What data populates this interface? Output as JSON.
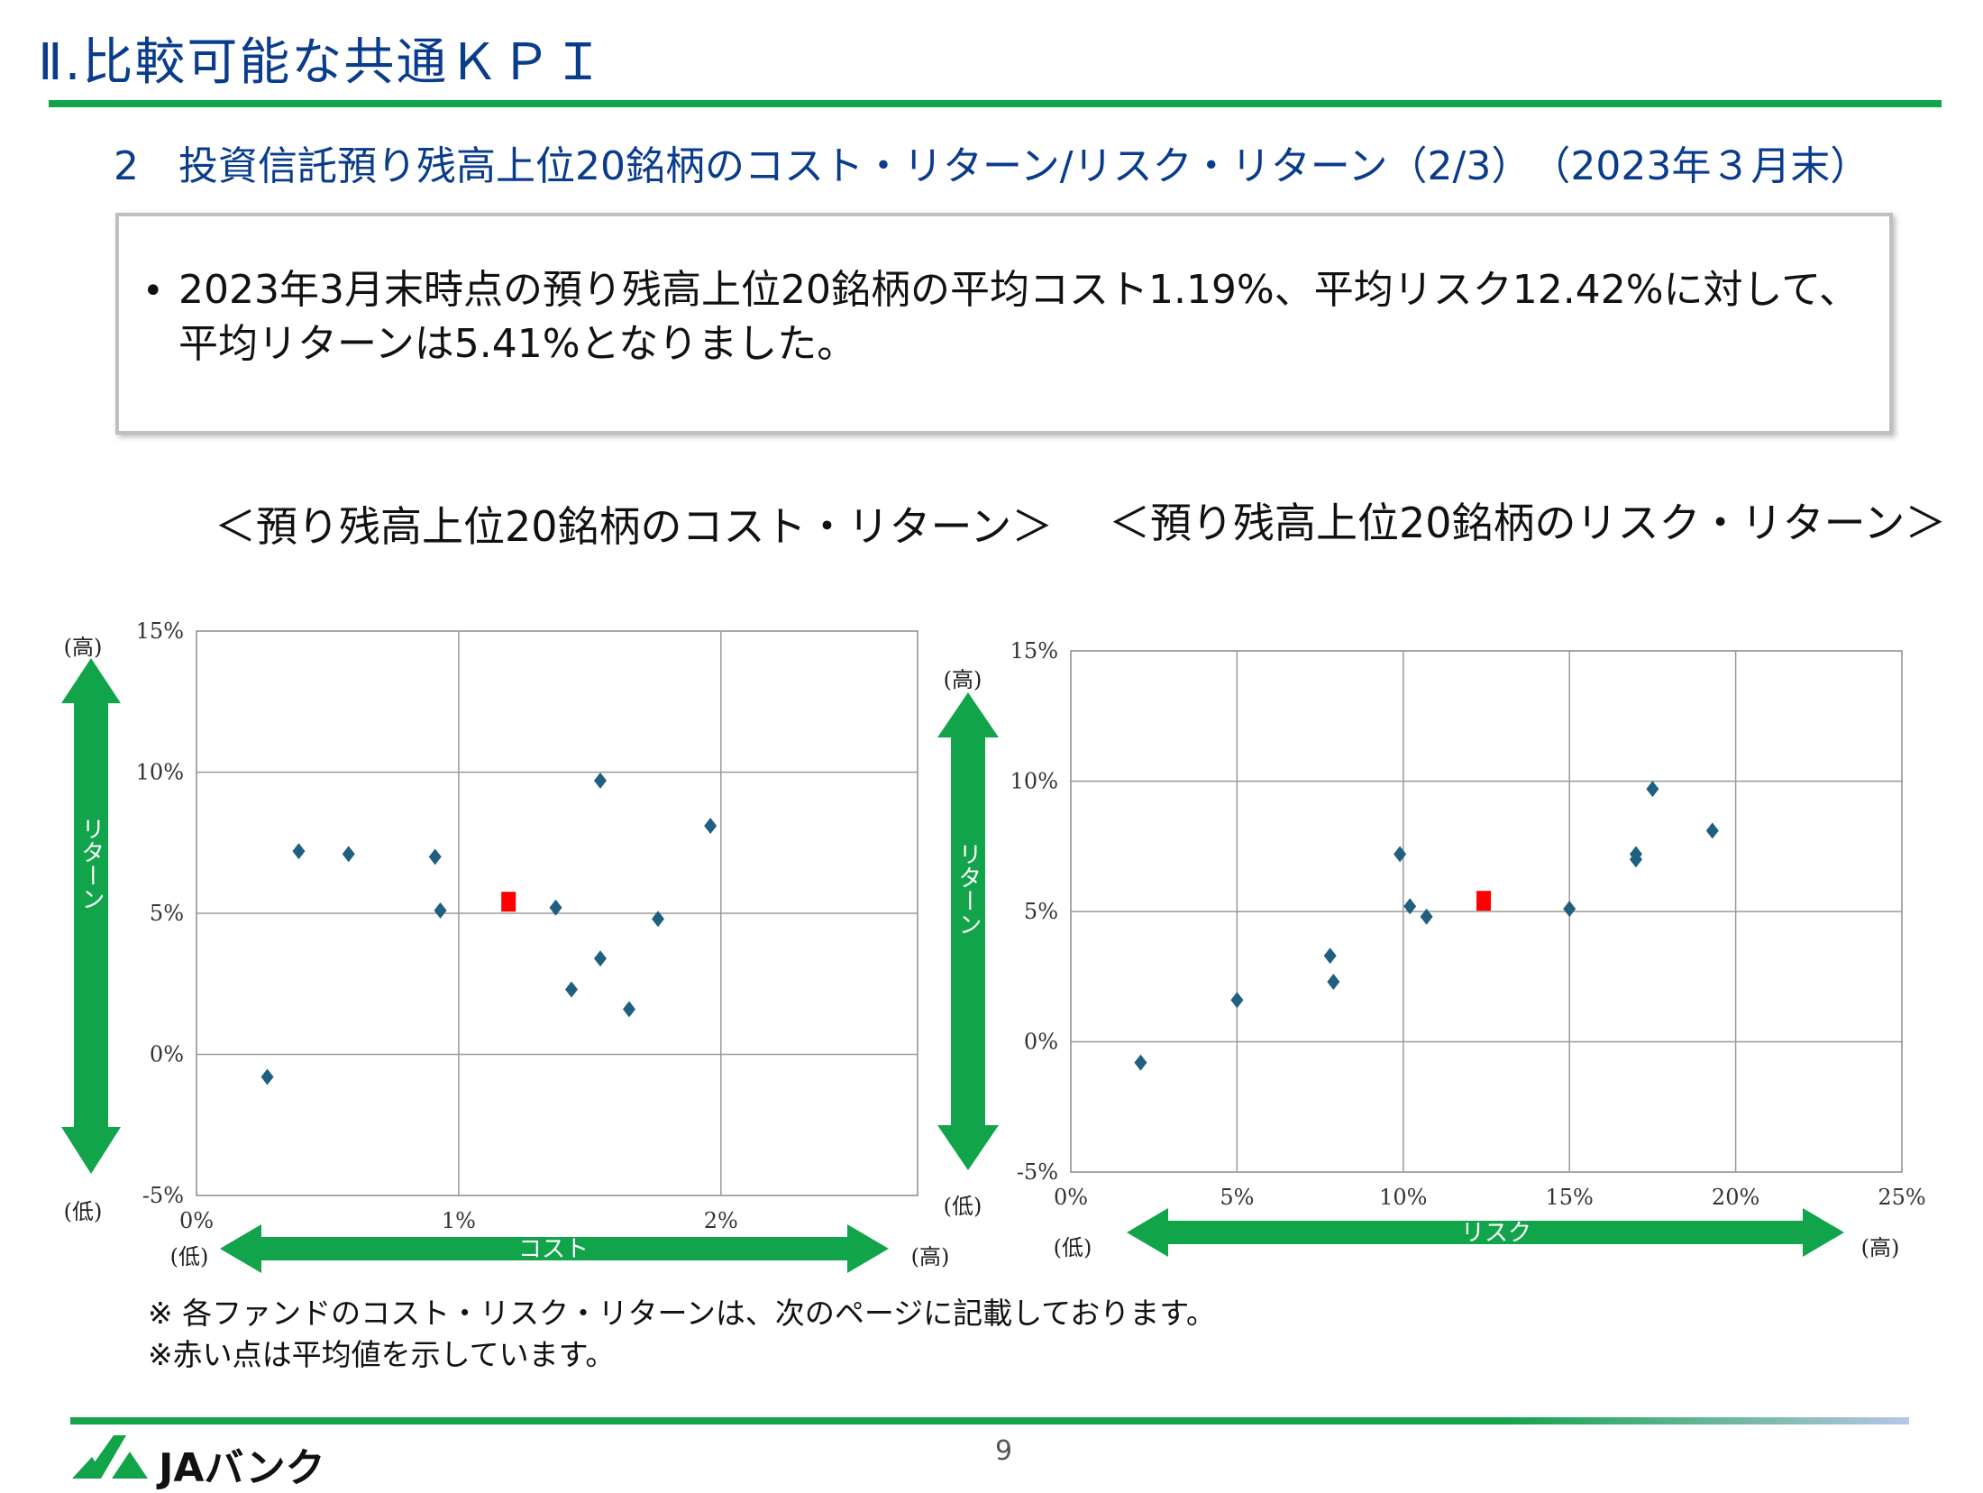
{
  "header": {
    "title": "Ⅱ.比較可能な共通ＫＰＩ",
    "subtitle": "2　投資信託預り残高上位20銘柄のコスト・リターン/リスク・リターン（2/3）　（2023年３月末）"
  },
  "summary": {
    "bullet": "•",
    "text": "2023年3月末時点の預り残高上位20銘柄の平均コスト1.19%、平均リスク12.42%に対して、平均リターンは5.41%となりました。"
  },
  "charts": {
    "left_title": "＜預り残高上位20銘柄のコスト・リターン＞",
    "right_title": "＜預り残高上位20銘柄のリスク・リターン＞",
    "y_arrow_label": "リターン",
    "high_label": "(高)",
    "low_label": "(低)",
    "left_x_arrow_label": "コスト",
    "right_x_arrow_label": "リスク"
  },
  "chart_data": [
    {
      "type": "scatter",
      "title": "＜預り残高上位20銘柄のコスト・リターン＞",
      "xlabel": "コスト",
      "ylabel": "リターン",
      "xlim": [
        0,
        2.75
      ],
      "ylim": [
        -5,
        15
      ],
      "x_ticks": [
        "0%",
        "1%",
        "2%"
      ],
      "y_ticks": [
        "-5%",
        "0%",
        "5%",
        "10%",
        "15%"
      ],
      "series": [
        {
          "values": [
            {
              "x": 0.27,
              "y": -0.8
            },
            {
              "x": 0.39,
              "y": 7.2
            },
            {
              "x": 0.58,
              "y": 7.1
            },
            {
              "x": 0.91,
              "y": 7.0
            },
            {
              "x": 0.93,
              "y": 5.1
            },
            {
              "x": 1.37,
              "y": 5.2
            },
            {
              "x": 1.43,
              "y": 2.3
            },
            {
              "x": 1.54,
              "y": 9.7
            },
            {
              "x": 1.54,
              "y": 3.4
            },
            {
              "x": 1.65,
              "y": 1.6
            },
            {
              "x": 1.76,
              "y": 4.8
            },
            {
              "x": 1.96,
              "y": 8.1
            }
          ],
          "color": "#1f5f7f",
          "marker": "diamond"
        },
        {
          "values": [
            {
              "x": 1.19,
              "y": 5.41
            }
          ],
          "color": "#ff0000",
          "marker": "square"
        }
      ],
      "grid": true
    },
    {
      "type": "scatter",
      "title": "＜預り残高上位20銘柄のリスク・リターン＞",
      "xlabel": "リスク",
      "ylabel": "リターン",
      "xlim": [
        0,
        25
      ],
      "ylim": [
        -5,
        15
      ],
      "x_ticks": [
        "0%",
        "5%",
        "10%",
        "15%",
        "20%",
        "25%"
      ],
      "y_ticks": [
        "-5%",
        "0%",
        "5%",
        "10%",
        "15%"
      ],
      "series": [
        {
          "values": [
            {
              "x": 2.1,
              "y": -0.8
            },
            {
              "x": 5.0,
              "y": 1.6
            },
            {
              "x": 7.8,
              "y": 3.3
            },
            {
              "x": 7.9,
              "y": 2.3
            },
            {
              "x": 9.9,
              "y": 7.2
            },
            {
              "x": 10.2,
              "y": 5.2
            },
            {
              "x": 10.7,
              "y": 4.8
            },
            {
              "x": 15.0,
              "y": 5.1
            },
            {
              "x": 17.0,
              "y": 7.0
            },
            {
              "x": 17.0,
              "y": 7.2
            },
            {
              "x": 17.5,
              "y": 9.7
            },
            {
              "x": 19.3,
              "y": 8.1
            }
          ],
          "color": "#1f5f7f",
          "marker": "diamond"
        },
        {
          "values": [
            {
              "x": 12.42,
              "y": 5.41
            }
          ],
          "color": "#ff0000",
          "marker": "square"
        }
      ],
      "grid": true
    }
  ],
  "notes": {
    "note1": "※ 各ファンドのコスト・リスク・リターンは、次のページに記載しております。",
    "note2": "※赤い点は平均値を示しています。"
  },
  "footer": {
    "page_number": "9",
    "logo_text": "JAバンク"
  },
  "colors": {
    "title_blue": "#0a3c8c",
    "accent_green": "#12a44a",
    "marker_blue": "#1f5f7f",
    "average_red": "#ff0000"
  }
}
